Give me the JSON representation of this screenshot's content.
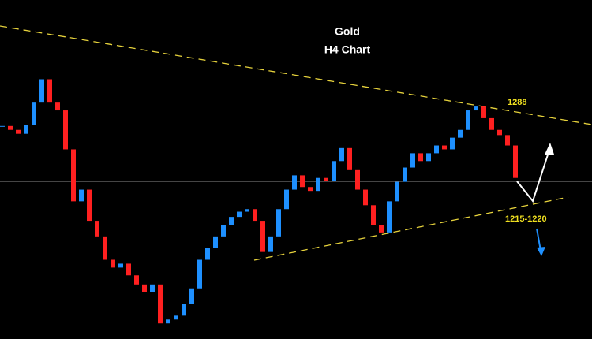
{
  "chart_data": {
    "type": "candlestick",
    "title": "Gold",
    "subtitle": "H4 Chart",
    "annotations": [
      "1288",
      "1215-1220"
    ],
    "close": [
      1276,
      1273,
      1270,
      1277,
      1294,
      1312,
      1294,
      1288,
      1258,
      1218,
      1227,
      1203,
      1191,
      1173,
      1167,
      1170,
      1161,
      1154,
      1148,
      1154,
      1124,
      1127,
      1130,
      1139,
      1151,
      1173,
      1182,
      1191,
      1200,
      1206,
      1210,
      1212,
      1203,
      1179,
      1191,
      1212,
      1227,
      1238,
      1229,
      1226,
      1236,
      1234,
      1249,
      1259,
      1242,
      1227,
      1215,
      1200,
      1194,
      1218,
      1233,
      1244,
      1255,
      1249,
      1255,
      1261,
      1258,
      1267,
      1273,
      1288,
      1291,
      1282,
      1273,
      1269,
      1261,
      1236
    ],
    "up_color": "#1e90ff",
    "down_color": "#ff2020",
    "ylim": [
      1112,
      1373
    ]
  }
}
